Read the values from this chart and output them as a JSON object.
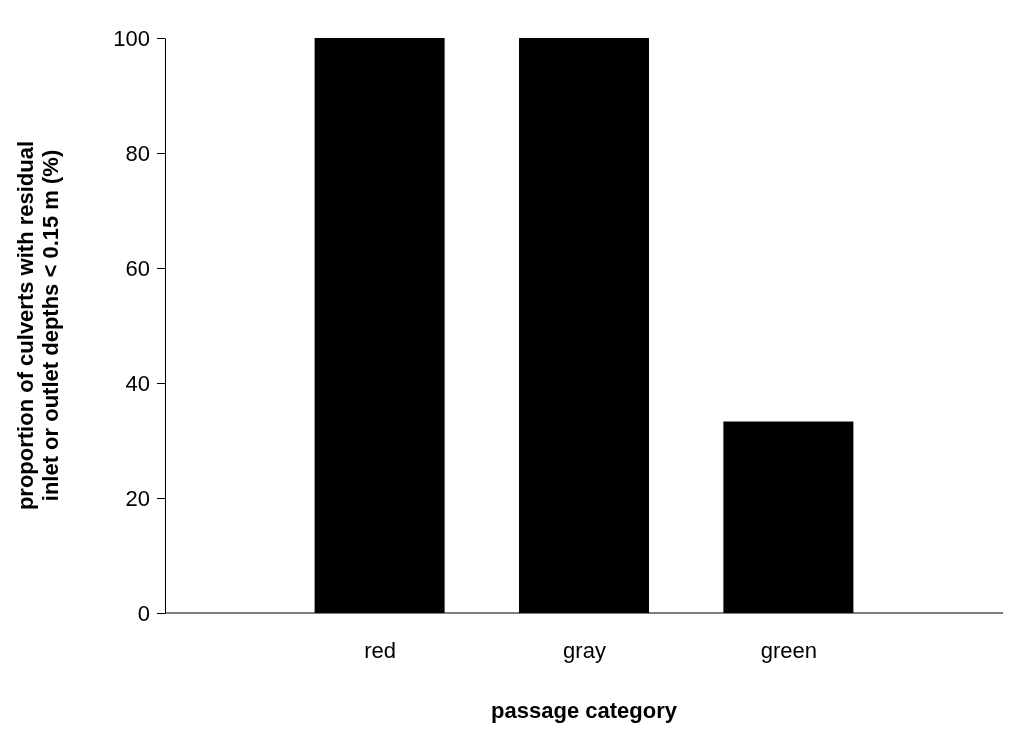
{
  "chart_data": {
    "type": "bar",
    "xlabel": "passage category",
    "ylabel": "proportion of culverts with residual\ninlet or outlet depths < 0.15 m (%)",
    "categories": [
      "red",
      "gray",
      "green"
    ],
    "values": [
      100,
      100,
      33.3
    ],
    "color": "#000000",
    "ylim": [
      0,
      100
    ],
    "yticks": [
      0,
      20,
      40,
      60,
      80,
      100
    ],
    "grid": false
  }
}
